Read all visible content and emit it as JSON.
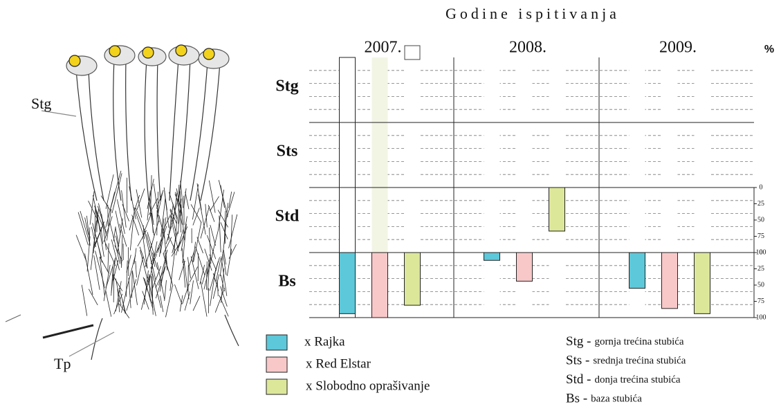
{
  "chart_data": {
    "type": "bar",
    "title": "Godine ispitivanja",
    "categories": [
      "2007.",
      "2008.",
      "2009."
    ],
    "zones": [
      "Stg",
      "Sts",
      "Std",
      "Bs"
    ],
    "unit_label": "%",
    "ylim": [
      0,
      100
    ],
    "yticks": [
      0,
      25,
      50,
      75,
      100
    ],
    "tick_zones": [
      2,
      3
    ],
    "series": [
      {
        "name": "x Rajka",
        "color": "#5cc8d9",
        "values": [
          [
            null,
            null,
            null
          ],
          [
            null,
            null,
            null
          ],
          [
            null,
            null,
            null
          ],
          [
            94,
            12,
            55
          ]
        ]
      },
      {
        "name": "x Red Elstar",
        "color": "#f8c8c9",
        "values": [
          [
            null,
            null,
            null
          ],
          [
            null,
            null,
            null
          ],
          [
            null,
            null,
            null
          ],
          [
            100,
            44,
            86
          ]
        ]
      },
      {
        "name": "x Slobodno oprašivanje",
        "color": "#dde79a",
        "values": [
          [
            null,
            null,
            null
          ],
          [
            null,
            null,
            null
          ],
          [
            null,
            67,
            null
          ],
          [
            81,
            null,
            94
          ]
        ]
      }
    ],
    "notes": [
      {
        "abbr": "Stg -",
        "text": "gornja trećina stubića"
      },
      {
        "abbr": "Sts -",
        "text": "srednja trećina stubića"
      },
      {
        "abbr": "Std -",
        "text": "donja trećina stubića"
      },
      {
        "abbr": "Bs -",
        "text": "baza stubića"
      }
    ]
  },
  "illustration": {
    "labels": [
      "Stg",
      "Tp"
    ]
  }
}
